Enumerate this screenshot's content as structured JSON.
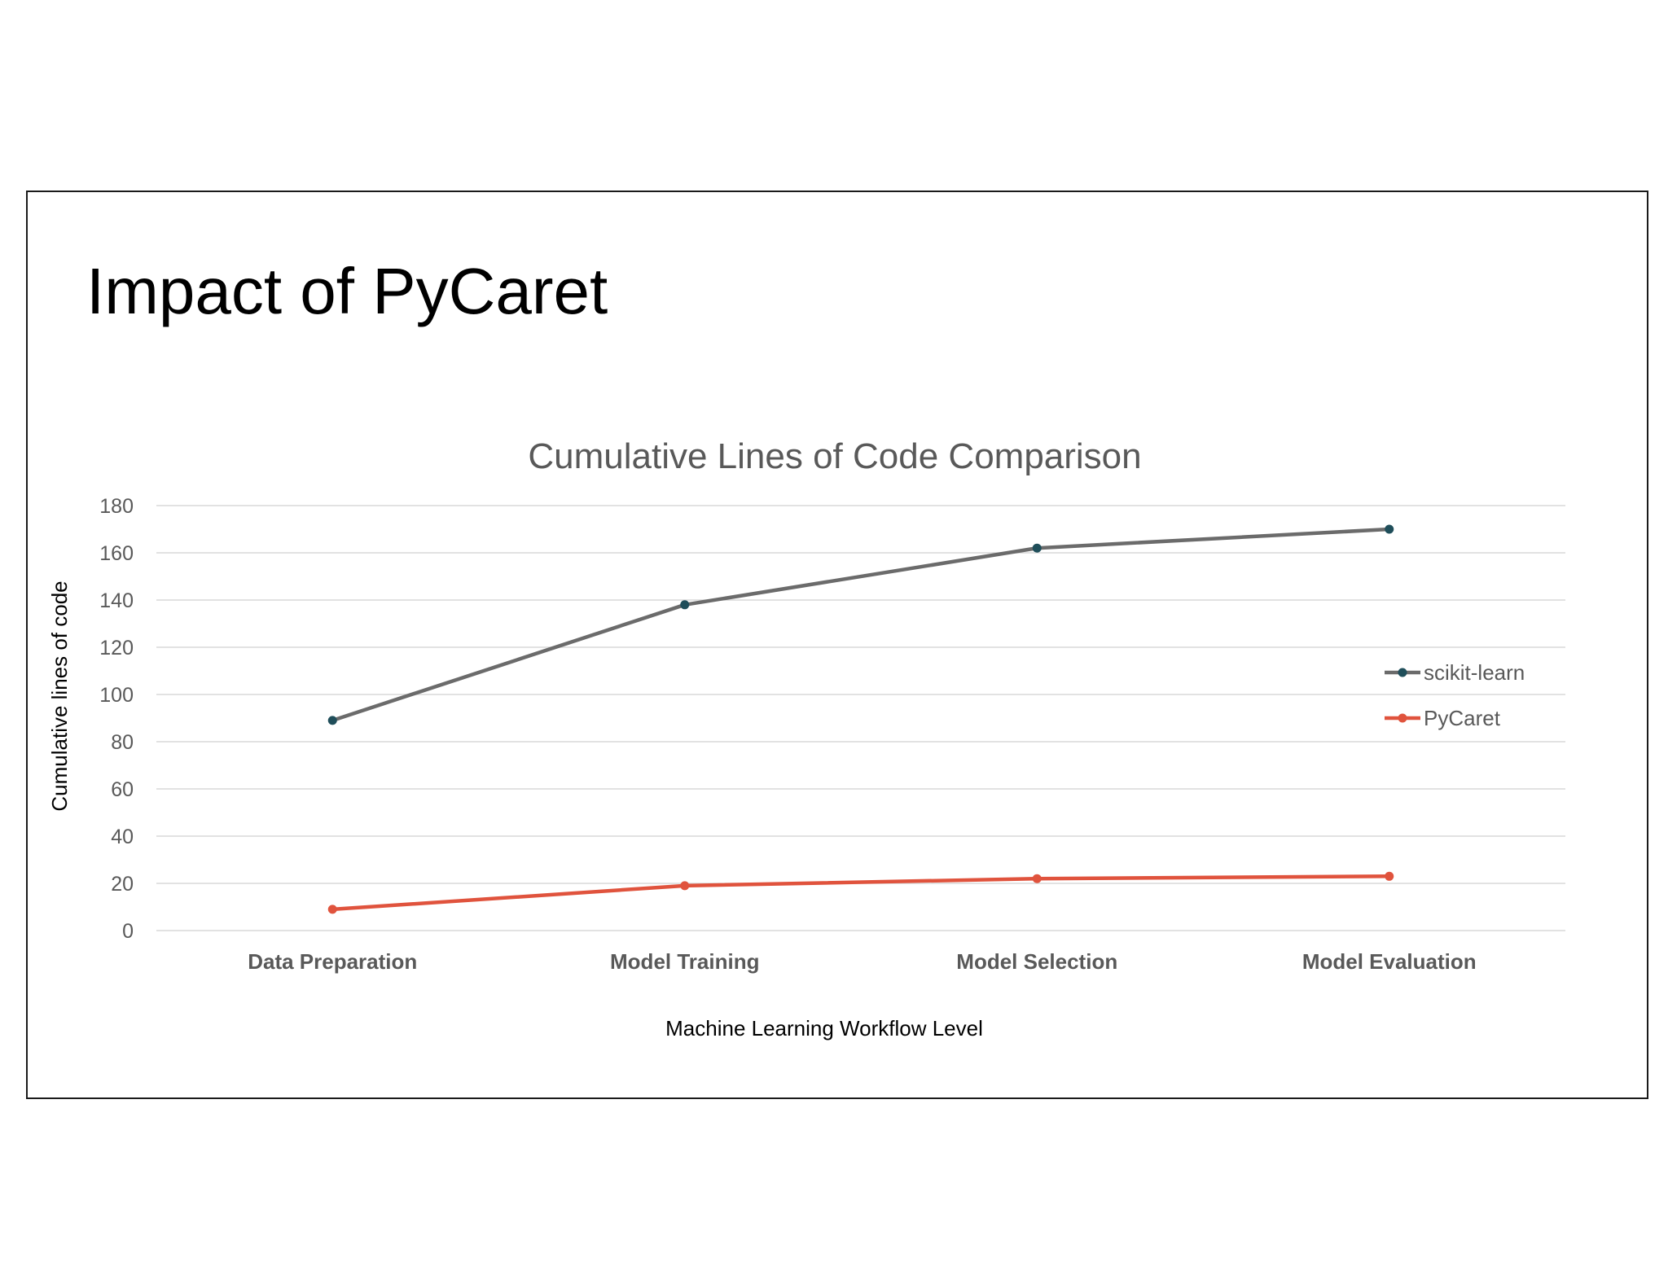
{
  "slide": {
    "title": "Impact of PyCaret"
  },
  "chart_data": {
    "type": "line",
    "title": "Cumulative Lines of Code Comparison",
    "xlabel": "Machine Learning Workflow Level",
    "ylabel": "Cumulative lines of code",
    "categories": [
      "Data Preparation",
      "Model Training",
      "Model Selection",
      "Model Evaluation"
    ],
    "ylim": [
      0,
      180
    ],
    "yticks": [
      0,
      20,
      40,
      60,
      80,
      100,
      120,
      140,
      160,
      180
    ],
    "grid": true,
    "legend_position": "right",
    "series": [
      {
        "name": "scikit-learn",
        "values": [
          89,
          138,
          162,
          170
        ],
        "line_color": "#6b6b6b",
        "marker_color": "#1f4e5a"
      },
      {
        "name": "PyCaret",
        "values": [
          9,
          19,
          22,
          23
        ],
        "line_color": "#e0533d",
        "marker_color": "#e0533d"
      }
    ]
  }
}
